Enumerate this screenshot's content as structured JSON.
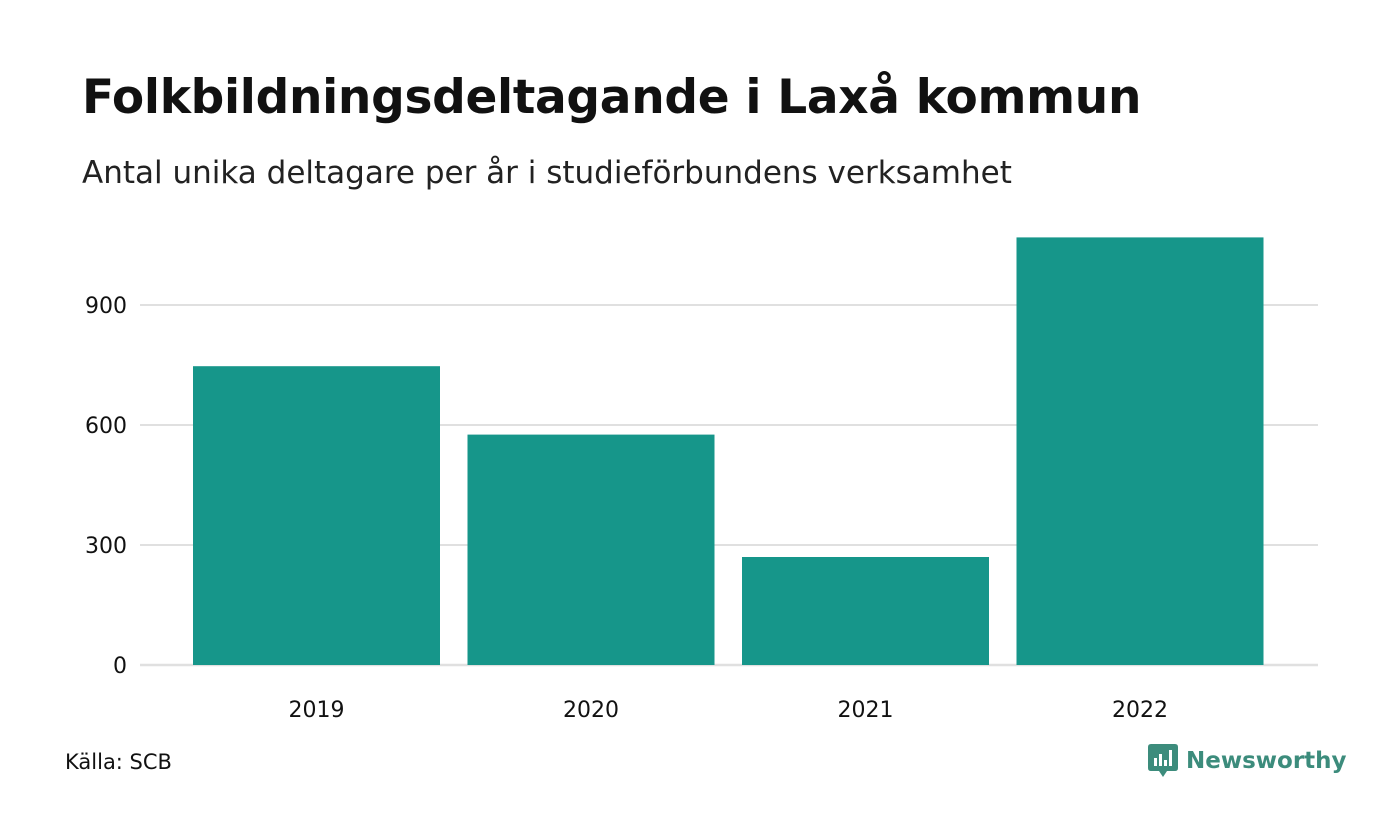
{
  "chart_data": {
    "type": "bar",
    "title": "Folkbildningsdeltagande i Laxå kommun",
    "subtitle": "Antal unika deltagare per år i studieförbundens verksamhet",
    "categories": [
      "2019",
      "2020",
      "2021",
      "2022"
    ],
    "values": [
      747,
      576,
      270,
      1069
    ],
    "yticks": [
      0,
      300,
      600,
      900
    ],
    "ylim": [
      0,
      1069
    ],
    "xlabel": "",
    "ylabel": "",
    "grid": true,
    "bar_color": "#16968a"
  },
  "footer": {
    "source": "Källa: SCB",
    "brand": "Newsworthy"
  },
  "colors": {
    "bar": "#16968a",
    "grid": "#e0e0e0",
    "brand": "#3c8c7c"
  }
}
